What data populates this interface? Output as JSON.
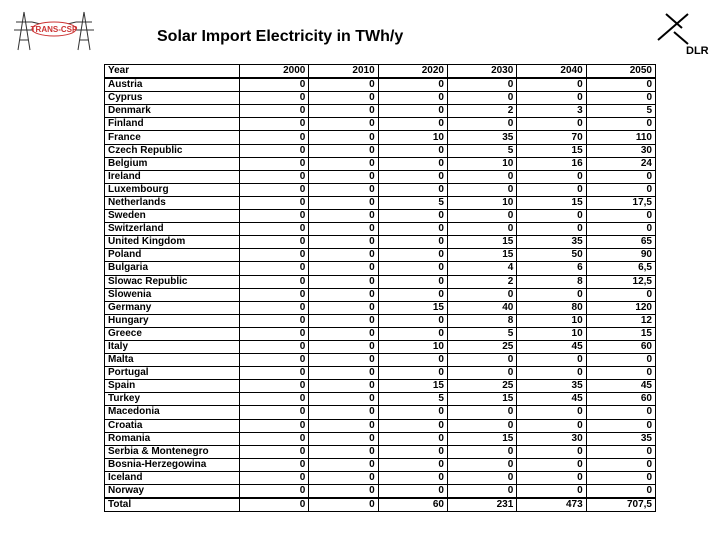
{
  "header": {
    "title": "Solar Import Electricity in TWh/y",
    "left_logo": "TRANS-CSP",
    "right_logo": "DLR"
  },
  "table": {
    "columns": [
      "Year",
      "2000",
      "2010",
      "2020",
      "2030",
      "2040",
      "2050"
    ],
    "rows": [
      [
        "Austria",
        0,
        0,
        0,
        0,
        0,
        0
      ],
      [
        "Cyprus",
        0,
        0,
        0,
        0,
        0,
        0
      ],
      [
        "Denmark",
        0,
        0,
        0,
        2,
        3,
        5
      ],
      [
        "Finland",
        0,
        0,
        0,
        0,
        0,
        0
      ],
      [
        "France",
        0,
        0,
        10,
        35,
        70,
        110
      ],
      [
        "Czech Republic",
        0,
        0,
        0,
        5,
        15,
        30
      ],
      [
        "Belgium",
        0,
        0,
        0,
        10,
        16,
        24
      ],
      [
        "Ireland",
        0,
        0,
        0,
        0,
        0,
        0
      ],
      [
        "Luxembourg",
        0,
        0,
        0,
        0,
        0,
        0
      ],
      [
        "Netherlands",
        0,
        0,
        5,
        10,
        15,
        "17,5"
      ],
      [
        "Sweden",
        0,
        0,
        0,
        0,
        0,
        0
      ],
      [
        "Switzerland",
        0,
        0,
        0,
        0,
        0,
        0
      ],
      [
        "United Kingdom",
        0,
        0,
        0,
        15,
        35,
        65
      ],
      [
        "Poland",
        0,
        0,
        0,
        15,
        50,
        90
      ],
      [
        "Bulgaria",
        0,
        0,
        0,
        4,
        6,
        "6,5"
      ],
      [
        "Slowac Republic",
        0,
        0,
        0,
        2,
        8,
        "12,5"
      ],
      [
        "Slowenia",
        0,
        0,
        0,
        0,
        0,
        0
      ],
      [
        "Germany",
        0,
        0,
        15,
        40,
        80,
        120
      ],
      [
        "Hungary",
        0,
        0,
        0,
        8,
        10,
        12
      ],
      [
        "Greece",
        0,
        0,
        0,
        5,
        10,
        15
      ],
      [
        "Italy",
        0,
        0,
        10,
        25,
        45,
        60
      ],
      [
        "Malta",
        0,
        0,
        0,
        0,
        0,
        0
      ],
      [
        "Portugal",
        0,
        0,
        0,
        0,
        0,
        0
      ],
      [
        "Spain",
        0,
        0,
        15,
        25,
        35,
        45
      ],
      [
        "Turkey",
        0,
        0,
        5,
        15,
        45,
        60
      ],
      [
        "Macedonia",
        0,
        0,
        0,
        0,
        0,
        0
      ],
      [
        "Croatia",
        0,
        0,
        0,
        0,
        0,
        0
      ],
      [
        "Romania",
        0,
        0,
        0,
        15,
        30,
        35
      ],
      [
        "Serbia & Montenegro",
        0,
        0,
        0,
        0,
        0,
        0
      ],
      [
        "Bosnia-Herzegowina",
        0,
        0,
        0,
        0,
        0,
        0
      ],
      [
        "Iceland",
        0,
        0,
        0,
        0,
        0,
        0
      ],
      [
        "Norway",
        0,
        0,
        0,
        0,
        0,
        0
      ],
      [
        "Total",
        0,
        0,
        60,
        231,
        473,
        "707,5"
      ]
    ]
  }
}
